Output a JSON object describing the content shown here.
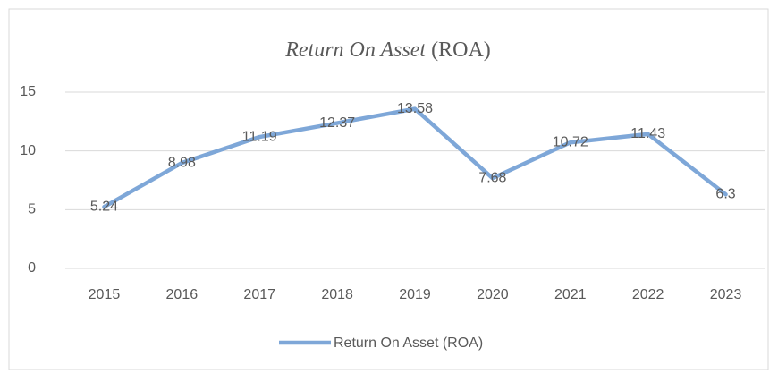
{
  "chart_data": {
    "type": "line",
    "title": [
      "Return On Asset",
      "(ROA)"
    ],
    "categories": [
      "2015",
      "2016",
      "2017",
      "2018",
      "2019",
      "2020",
      "2021",
      "2022",
      "2023"
    ],
    "series": [
      {
        "name": "Return On Asset (ROA)",
        "color": "#7ea7d8",
        "values": [
          5.24,
          8.98,
          11.19,
          12.37,
          13.58,
          7.68,
          10.72,
          11.43,
          6.3
        ]
      }
    ],
    "ylim": [
      0,
      15
    ],
    "yticks": [
      0,
      5,
      10,
      15
    ],
    "grid": true,
    "legend": "bottom"
  }
}
